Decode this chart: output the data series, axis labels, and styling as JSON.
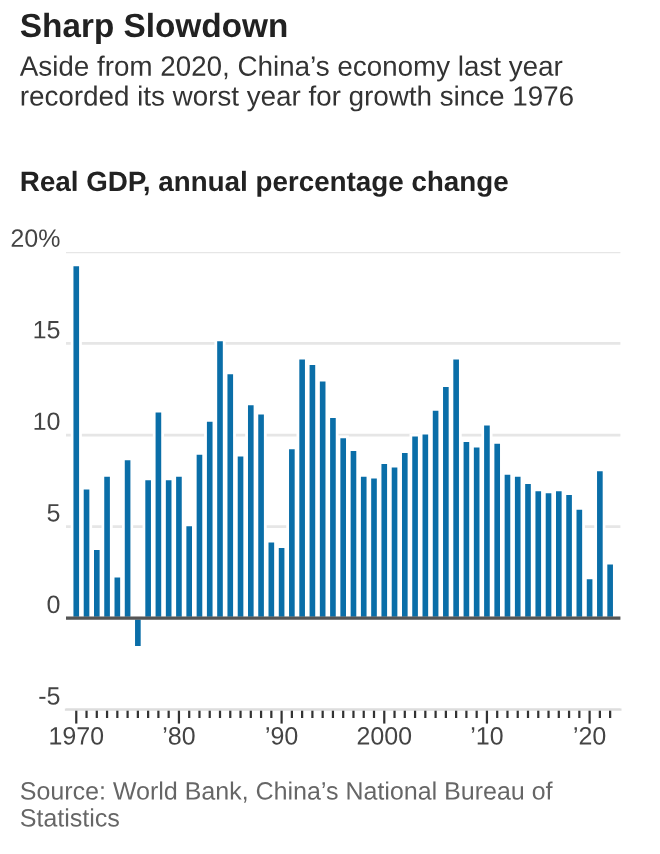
{
  "chart_data": {
    "type": "bar",
    "title": "Sharp Slowdown",
    "subtitle": "Aside from 2020, China’s economy last year recorded its worst year for growth since 1976",
    "ylabel": "Real GDP, annual percentage change",
    "annotations": [
      "Source: World Bank, China’s National Bureau of Statistics"
    ],
    "x": [
      1970,
      1971,
      1972,
      1973,
      1974,
      1975,
      1976,
      1977,
      1978,
      1979,
      1980,
      1981,
      1982,
      1983,
      1984,
      1985,
      1986,
      1987,
      1988,
      1989,
      1990,
      1991,
      1992,
      1993,
      1994,
      1995,
      1996,
      1997,
      1998,
      1999,
      2000,
      2001,
      2002,
      2003,
      2004,
      2005,
      2006,
      2007,
      2008,
      2009,
      2010,
      2011,
      2012,
      2013,
      2014,
      2015,
      2016,
      2017,
      2018,
      2019,
      2020,
      2021,
      2022
    ],
    "values": [
      19.3,
      7.1,
      3.8,
      7.8,
      2.3,
      8.7,
      -1.6,
      7.6,
      11.3,
      7.6,
      7.8,
      5.1,
      9.0,
      10.8,
      15.2,
      13.4,
      8.9,
      11.7,
      11.2,
      4.2,
      3.9,
      9.3,
      14.2,
      13.9,
      13.0,
      11.0,
      9.9,
      9.2,
      7.8,
      7.7,
      8.5,
      8.3,
      9.1,
      10.0,
      10.1,
      11.4,
      12.7,
      14.2,
      9.7,
      9.4,
      10.6,
      9.6,
      7.9,
      7.8,
      7.4,
      7.0,
      6.9,
      7.0,
      6.8,
      6.0,
      2.2,
      8.1,
      3.0
    ],
    "color": "#0a6ea8",
    "xlim": [
      1969,
      2023
    ],
    "xticks": [
      {
        "value": 1970,
        "label": "1970"
      },
      {
        "value": 1971,
        "label": null
      },
      {
        "value": 1972,
        "label": null
      },
      {
        "value": 1973,
        "label": null
      },
      {
        "value": 1974,
        "label": null
      },
      {
        "value": 1975,
        "label": null
      },
      {
        "value": 1976,
        "label": null
      },
      {
        "value": 1977,
        "label": null
      },
      {
        "value": 1978,
        "label": null
      },
      {
        "value": 1979,
        "label": null
      },
      {
        "value": 1980,
        "label": "’80"
      },
      {
        "value": 1981,
        "label": null
      },
      {
        "value": 1982,
        "label": null
      },
      {
        "value": 1983,
        "label": null
      },
      {
        "value": 1984,
        "label": null
      },
      {
        "value": 1985,
        "label": null
      },
      {
        "value": 1986,
        "label": null
      },
      {
        "value": 1987,
        "label": null
      },
      {
        "value": 1988,
        "label": null
      },
      {
        "value": 1989,
        "label": null
      },
      {
        "value": 1990,
        "label": "’90"
      },
      {
        "value": 1991,
        "label": null
      },
      {
        "value": 1992,
        "label": null
      },
      {
        "value": 1993,
        "label": null
      },
      {
        "value": 1994,
        "label": null
      },
      {
        "value": 1995,
        "label": null
      },
      {
        "value": 1996,
        "label": null
      },
      {
        "value": 1997,
        "label": null
      },
      {
        "value": 1998,
        "label": null
      },
      {
        "value": 1999,
        "label": null
      },
      {
        "value": 2000,
        "label": "2000"
      },
      {
        "value": 2001,
        "label": null
      },
      {
        "value": 2002,
        "label": null
      },
      {
        "value": 2003,
        "label": null
      },
      {
        "value": 2004,
        "label": null
      },
      {
        "value": 2005,
        "label": null
      },
      {
        "value": 2006,
        "label": null
      },
      {
        "value": 2007,
        "label": null
      },
      {
        "value": 2008,
        "label": null
      },
      {
        "value": 2009,
        "label": null
      },
      {
        "value": 2010,
        "label": "’10"
      },
      {
        "value": 2011,
        "label": null
      },
      {
        "value": 2012,
        "label": null
      },
      {
        "value": 2013,
        "label": null
      },
      {
        "value": 2014,
        "label": null
      },
      {
        "value": 2015,
        "label": null
      },
      {
        "value": 2016,
        "label": null
      },
      {
        "value": 2017,
        "label": null
      },
      {
        "value": 2018,
        "label": null
      },
      {
        "value": 2019,
        "label": null
      },
      {
        "value": 2020,
        "label": "’20"
      },
      {
        "value": 2021,
        "label": null
      },
      {
        "value": 2022,
        "label": null
      }
    ],
    "ylim": [
      -5,
      20
    ],
    "yticks": [
      -5,
      0,
      5,
      10,
      15,
      {
        "value": 20,
        "label": "20%"
      }
    ],
    "ref_lines": [
      {
        "axis": "y",
        "value": 0,
        "color": "#555555"
      }
    ],
    "grid": "y",
    "legend": false
  }
}
